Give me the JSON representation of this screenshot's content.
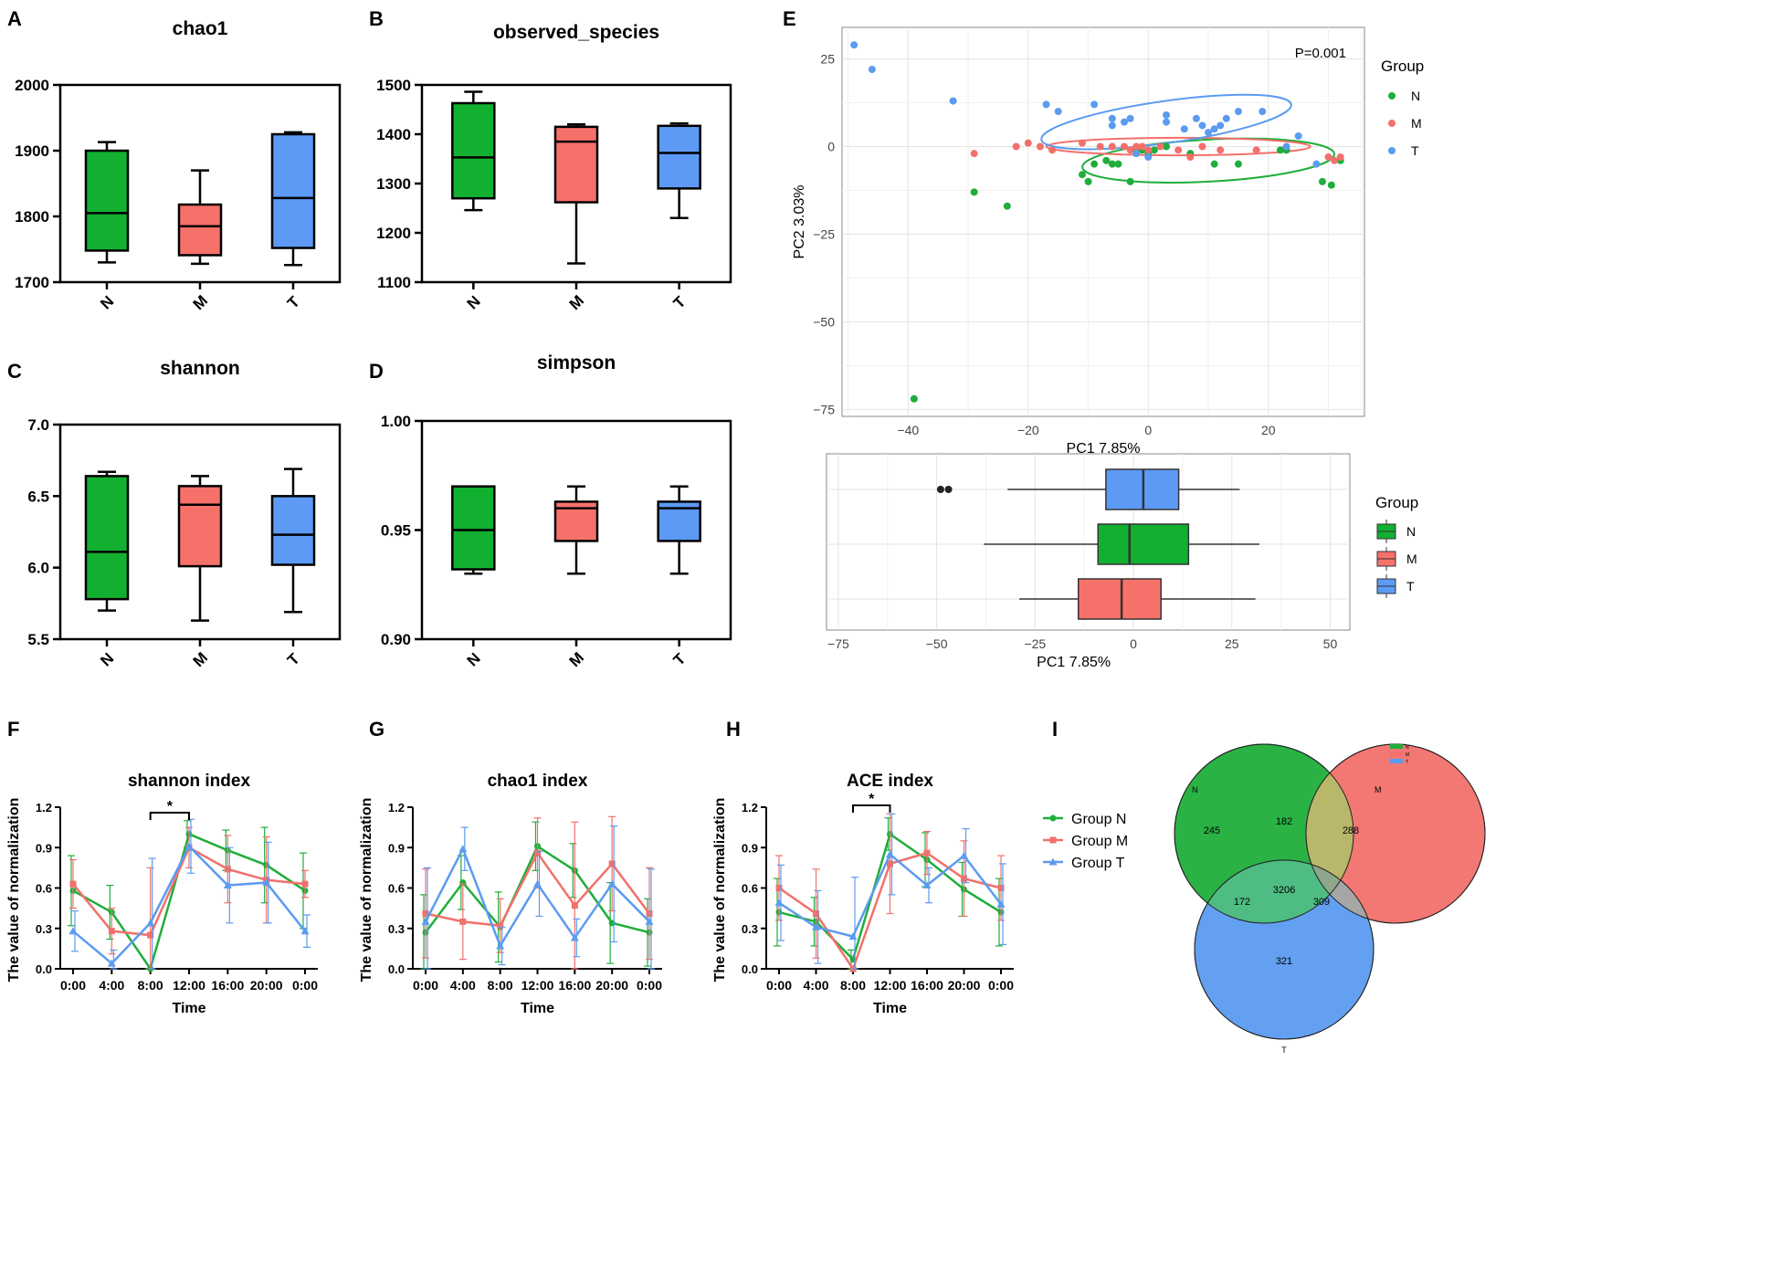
{
  "panel_letters": [
    "A",
    "B",
    "C",
    "D",
    "E",
    "F",
    "G",
    "H",
    "I"
  ],
  "colors": {
    "N": "#1fae3b",
    "M": "#f2706b",
    "T": "#5b9bf0",
    "box_N": "#12b030",
    "box_M": "#f7716b",
    "box_T": "#5c9af5"
  },
  "groups": [
    "N",
    "M",
    "T"
  ],
  "chart_data": [
    {
      "id": "A",
      "type": "box",
      "title": "chao1",
      "categories": [
        "N",
        "M",
        "T"
      ],
      "ylim": [
        1700,
        2000
      ],
      "yticks": [
        1700,
        1800,
        1900,
        2000
      ],
      "boxes": [
        {
          "min": 1730,
          "q1": 1748,
          "median": 1805,
          "q3": 1900,
          "max": 1913
        },
        {
          "min": 1728,
          "q1": 1741,
          "median": 1785,
          "q3": 1818,
          "max": 1870
        },
        {
          "min": 1726,
          "q1": 1752,
          "median": 1828,
          "q3": 1925,
          "max": 1928
        }
      ]
    },
    {
      "id": "B",
      "type": "box",
      "title": "observed_species",
      "categories": [
        "N",
        "M",
        "T"
      ],
      "ylim": [
        1100,
        1500
      ],
      "yticks": [
        1100,
        1200,
        1300,
        1400,
        1500
      ],
      "boxes": [
        {
          "min": 1246,
          "q1": 1270,
          "median": 1353,
          "q3": 1463,
          "max": 1486
        },
        {
          "min": 1138,
          "q1": 1262,
          "median": 1385,
          "q3": 1415,
          "max": 1420
        },
        {
          "min": 1230,
          "q1": 1290,
          "median": 1362,
          "q3": 1417,
          "max": 1422
        }
      ]
    },
    {
      "id": "C",
      "type": "box",
      "title": "shannon",
      "categories": [
        "N",
        "M",
        "T"
      ],
      "ylim": [
        5.5,
        7.0
      ],
      "yticks": [
        "5.5",
        "6.0",
        "6.5",
        "7.0"
      ],
      "boxes": [
        {
          "min": 5.7,
          "q1": 5.78,
          "median": 6.11,
          "q3": 6.64,
          "max": 6.67
        },
        {
          "min": 5.63,
          "q1": 6.01,
          "median": 6.44,
          "q3": 6.57,
          "max": 6.64
        },
        {
          "min": 5.69,
          "q1": 6.02,
          "median": 6.23,
          "q3": 6.5,
          "max": 6.69
        }
      ]
    },
    {
      "id": "D",
      "type": "box",
      "title": "simpson",
      "categories": [
        "N",
        "M",
        "T"
      ],
      "ylim": [
        0.9,
        1.0
      ],
      "yticks": [
        "0.90",
        "0.95",
        "1.00"
      ],
      "boxes": [
        {
          "min": 0.93,
          "q1": 0.932,
          "median": 0.95,
          "q3": 0.97,
          "max": 0.97
        },
        {
          "min": 0.93,
          "q1": 0.945,
          "median": 0.96,
          "q3": 0.963,
          "max": 0.97
        },
        {
          "min": 0.93,
          "q1": 0.945,
          "median": 0.96,
          "q3": 0.963,
          "max": 0.97
        }
      ]
    },
    {
      "id": "E",
      "type": "scatter",
      "xlabel": "PC1 7.85%",
      "ylabel": "PC2 3.03%",
      "xlim": [
        -51,
        36
      ],
      "ylim": [
        -77,
        34
      ],
      "xticks": [
        -40,
        -20,
        0,
        20
      ],
      "yticks": [
        25,
        0,
        -25,
        -50,
        -75
      ],
      "annotation": "P=0.001",
      "legend_title": "Group",
      "legend": [
        "N",
        "M",
        "T"
      ],
      "series": [
        {
          "name": "N",
          "points": [
            [
              -39,
              -72
            ],
            [
              -29,
              -13
            ],
            [
              -23.5,
              -17
            ],
            [
              -11,
              -8
            ],
            [
              -10,
              -10
            ],
            [
              -9,
              -5
            ],
            [
              -7,
              -4
            ],
            [
              -6,
              -5
            ],
            [
              -5,
              -5
            ],
            [
              -3,
              -10
            ],
            [
              -2,
              -1
            ],
            [
              -1,
              -1
            ],
            [
              0,
              -2
            ],
            [
              1,
              -1
            ],
            [
              3,
              0
            ],
            [
              7,
              -2
            ],
            [
              11,
              -5
            ],
            [
              15,
              -5
            ],
            [
              22,
              -1
            ],
            [
              23,
              -1
            ],
            [
              29,
              -10
            ],
            [
              30.5,
              -11
            ],
            [
              32,
              -4
            ]
          ]
        },
        {
          "name": "M",
          "points": [
            [
              -29,
              -2
            ],
            [
              -22,
              0
            ],
            [
              -20,
              1
            ],
            [
              -18,
              0
            ],
            [
              -16,
              -1
            ],
            [
              -11,
              1
            ],
            [
              -8,
              0
            ],
            [
              -6,
              0
            ],
            [
              -4,
              0
            ],
            [
              -3,
              -1
            ],
            [
              -2,
              0
            ],
            [
              -1,
              0
            ],
            [
              0,
              -1
            ],
            [
              2,
              0
            ],
            [
              5,
              -1
            ],
            [
              7,
              -3
            ],
            [
              9,
              0
            ],
            [
              12,
              -1
            ],
            [
              18,
              -1
            ],
            [
              30,
              -3
            ],
            [
              31,
              -4
            ],
            [
              32,
              -3
            ]
          ]
        },
        {
          "name": "T",
          "points": [
            [
              -49,
              29
            ],
            [
              -46,
              22
            ],
            [
              -32.5,
              13
            ],
            [
              -17,
              12
            ],
            [
              -15,
              10
            ],
            [
              -9,
              12
            ],
            [
              -6,
              6
            ],
            [
              -6,
              8
            ],
            [
              -4,
              7
            ],
            [
              -2,
              -2
            ],
            [
              0,
              -3
            ],
            [
              -3,
              8
            ],
            [
              3,
              9
            ],
            [
              3,
              7
            ],
            [
              6,
              5
            ],
            [
              8,
              8
            ],
            [
              9,
              6
            ],
            [
              10,
              4
            ],
            [
              11,
              5
            ],
            [
              12,
              6
            ],
            [
              13,
              8
            ],
            [
              15,
              10
            ],
            [
              19,
              10
            ],
            [
              23,
              0
            ],
            [
              25,
              3
            ],
            [
              28,
              -5
            ]
          ]
        }
      ],
      "ellipses": [
        {
          "name": "N",
          "cx": 10,
          "cy": -4,
          "rx": 21,
          "ry": 6,
          "angle": -3
        },
        {
          "name": "M",
          "cx": 5,
          "cy": 0,
          "rx": 22,
          "ry": 2.5,
          "angle": 0
        },
        {
          "name": "T",
          "cx": 3,
          "cy": 7,
          "rx": 21,
          "ry": 6,
          "angle": -8
        }
      ]
    },
    {
      "id": "E2",
      "type": "box_horizontal",
      "xlabel": "PC1 7.85%",
      "xlim": [
        -78,
        55
      ],
      "xticks": [
        -75,
        -50,
        -25,
        0,
        25,
        50
      ],
      "legend_title": "Group",
      "legend": [
        "N",
        "M",
        "T"
      ],
      "boxes": [
        {
          "name": "T",
          "min": -32,
          "q1": -7,
          "median": 2.5,
          "q3": 11.5,
          "max": 27,
          "outliers": [
            -49,
            -47
          ]
        },
        {
          "name": "N",
          "min": -38,
          "q1": -9,
          "median": -1,
          "q3": 14,
          "max": 32,
          "outliers": []
        },
        {
          "name": "M",
          "min": -29,
          "q1": -14,
          "median": -3,
          "q3": 7,
          "max": 31,
          "outliers": []
        }
      ]
    },
    {
      "id": "F",
      "type": "line",
      "title": "shannon index",
      "xlabel": "Time",
      "ylabel": "The value of normalization",
      "categories": [
        "0:00",
        "4:00",
        "8:00",
        "12:00",
        "16:00",
        "20:00",
        "0:00"
      ],
      "ylim": [
        0,
        1.2
      ],
      "yticks": [
        "0.0",
        "0.3",
        "0.6",
        "0.9",
        "1.2"
      ],
      "significance": {
        "from": 2,
        "to": 3,
        "label": "*"
      },
      "series": [
        {
          "name": "Group N",
          "values": [
            0.58,
            0.42,
            0.0,
            1.0,
            0.88,
            0.77,
            0.58
          ],
          "err": [
            0.26,
            0.2,
            0.0,
            0.1,
            0.15,
            0.28,
            0.28
          ]
        },
        {
          "name": "Group M",
          "values": [
            0.63,
            0.28,
            0.25,
            0.9,
            0.74,
            0.66,
            0.63
          ],
          "err": [
            0.18,
            0.17,
            0.5,
            0.15,
            0.25,
            0.32,
            0.1
          ]
        },
        {
          "name": "Group T",
          "values": [
            0.28,
            0.04,
            0.34,
            0.91,
            0.62,
            0.64,
            0.28
          ],
          "err": [
            0.15,
            0.1,
            0.48,
            0.2,
            0.28,
            0.3,
            0.12
          ]
        }
      ]
    },
    {
      "id": "G",
      "type": "line",
      "title": "chao1 index",
      "xlabel": "Time",
      "ylabel": "The value of normalization",
      "categories": [
        "0:00",
        "4:00",
        "8:00",
        "12:00",
        "16:00",
        "20:00",
        "0:00"
      ],
      "ylim": [
        0,
        1.2
      ],
      "yticks": [
        "0.0",
        "0.3",
        "0.6",
        "0.9",
        "1.2"
      ],
      "series": [
        {
          "name": "Group N",
          "values": [
            0.27,
            0.64,
            0.31,
            0.91,
            0.73,
            0.34,
            0.27
          ],
          "err": [
            0.28,
            0.2,
            0.26,
            0.18,
            0.2,
            0.3,
            0.25
          ]
        },
        {
          "name": "Group M",
          "values": [
            0.41,
            0.35,
            0.32,
            0.86,
            0.47,
            0.78,
            0.41
          ],
          "err": [
            0.33,
            0.28,
            0.2,
            0.26,
            0.62,
            0.35,
            0.34
          ]
        },
        {
          "name": "Group T",
          "values": [
            0.35,
            0.89,
            0.17,
            0.63,
            0.23,
            0.63,
            0.35
          ],
          "err": [
            0.4,
            0.16,
            0.14,
            0.24,
            0.14,
            0.43,
            0.39
          ]
        }
      ]
    },
    {
      "id": "H",
      "type": "line",
      "title": "ACE index",
      "xlabel": "Time",
      "ylabel": "The value of normalization",
      "categories": [
        "0:00",
        "4:00",
        "8:00",
        "12:00",
        "16:00",
        "20:00",
        "0:00"
      ],
      "ylim": [
        0,
        1.2
      ],
      "yticks": [
        "0.0",
        "0.3",
        "0.6",
        "0.9",
        "1.2"
      ],
      "significance": {
        "from": 2,
        "to": 3,
        "label": "*"
      },
      "series": [
        {
          "name": "Group N",
          "values": [
            0.42,
            0.35,
            0.07,
            1.0,
            0.81,
            0.59,
            0.42
          ],
          "err": [
            0.25,
            0.18,
            0.07,
            0.12,
            0.2,
            0.2,
            0.25
          ]
        },
        {
          "name": "Group M",
          "values": [
            0.6,
            0.41,
            0.0,
            0.78,
            0.86,
            0.67,
            0.6
          ],
          "err": [
            0.24,
            0.33,
            0.0,
            0.37,
            0.16,
            0.28,
            0.24
          ]
        },
        {
          "name": "Group T",
          "values": [
            0.49,
            0.31,
            0.24,
            0.85,
            0.62,
            0.84,
            0.48
          ],
          "err": [
            0.28,
            0.27,
            0.44,
            0.3,
            0.13,
            0.2,
            0.3
          ]
        }
      ]
    },
    {
      "id": "I",
      "type": "venn",
      "sets": [
        "N",
        "M",
        "T"
      ],
      "regions": {
        "N_only": "245",
        "M_only": "288",
        "T_only": "321",
        "NM": "182",
        "NT": "172",
        "MT": "309",
        "NMT": "3206"
      }
    }
  ],
  "line_legend": [
    "Group N",
    "Group M",
    "Group T"
  ]
}
